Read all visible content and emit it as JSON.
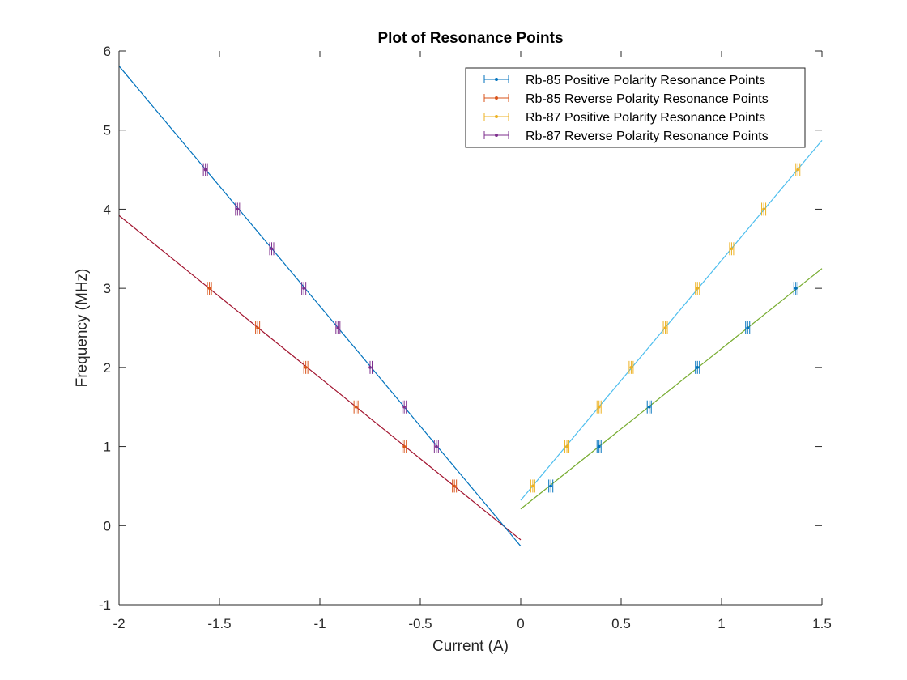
{
  "chart_data": {
    "type": "scatter",
    "title": "Plot of Resonance Points",
    "xlabel": "Current (A)",
    "ylabel": "Frequency (MHz)",
    "xlim": [
      -2,
      1.5
    ],
    "ylim": [
      -1,
      6
    ],
    "xticks": [
      -2,
      -1.5,
      -1,
      -0.5,
      0,
      0.5,
      1,
      1.5
    ],
    "xtick_labels": [
      "-2",
      "-1.5",
      "-1",
      "-0.5",
      "0",
      "0.5",
      "1",
      "1.5"
    ],
    "yticks": [
      -1,
      0,
      1,
      2,
      3,
      4,
      5,
      6
    ],
    "ytick_labels": [
      "-1",
      "0",
      "1",
      "2",
      "3",
      "4",
      "5",
      "6"
    ],
    "grid": false,
    "legend_position": "top-right",
    "series": [
      {
        "name": "Rb-85 Positive Polarity Resonance Points",
        "color": "#0072bd",
        "x": [
          0.15,
          0.39,
          0.64,
          0.88,
          1.13,
          1.37
        ],
        "y": [
          0.5,
          1.0,
          1.5,
          2.0,
          2.5,
          3.0
        ]
      },
      {
        "name": "Rb-85 Reverse Polarity Resonance Points",
        "color": "#d95319",
        "x": [
          -0.33,
          -0.58,
          -0.82,
          -1.07,
          -1.31,
          -1.55
        ],
        "y": [
          0.5,
          1.0,
          1.5,
          2.0,
          2.5,
          3.0
        ]
      },
      {
        "name": "Rb-87 Positive Polarity Resonance Points",
        "color": "#edb120",
        "x": [
          0.06,
          0.23,
          0.39,
          0.55,
          0.72,
          0.88,
          1.05,
          1.21,
          1.38
        ],
        "y": [
          0.5,
          1.0,
          1.5,
          2.0,
          2.5,
          3.0,
          3.5,
          4.0,
          4.5
        ]
      },
      {
        "name": "Rb-87 Reverse Polarity Resonance Points",
        "color": "#7e2f8e",
        "x": [
          -0.42,
          -0.58,
          -0.75,
          -0.91,
          -1.08,
          -1.24,
          -1.41,
          -1.57
        ],
        "y": [
          1.0,
          1.5,
          2.0,
          2.5,
          3.0,
          3.5,
          4.0,
          4.5
        ]
      }
    ],
    "fit_lines": [
      {
        "color": "#77ac30",
        "x": [
          0,
          1.5
        ],
        "y": [
          0.21,
          3.25
        ]
      },
      {
        "color": "#a2142f",
        "x": [
          -2,
          0
        ],
        "y": [
          3.92,
          -0.18
        ]
      },
      {
        "color": "#4dbeee",
        "x": [
          0,
          1.5
        ],
        "y": [
          0.32,
          4.87
        ]
      },
      {
        "color": "#0072bd",
        "x": [
          -2,
          0
        ],
        "y": [
          5.81,
          -0.26
        ]
      }
    ]
  }
}
